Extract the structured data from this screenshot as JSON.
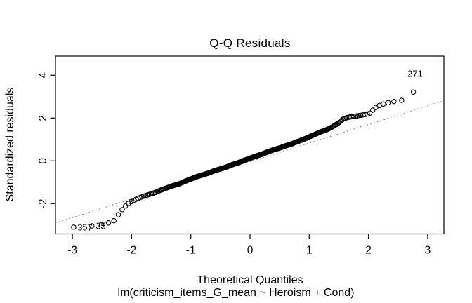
{
  "figure": {
    "background": "#ffffff",
    "foreground": "#000000"
  },
  "chart_data": {
    "type": "scatter",
    "subtype": "qq-normal-residual-plot",
    "title": "Q-Q Residuals",
    "xlabel": "Theoretical Quantiles",
    "ylabel": "Standardized residuals",
    "subtitle": "lm(criticism_items_G_mean ~ Heroism + Cond)",
    "x_ticks": [
      -3,
      -2,
      -1,
      0,
      1,
      2,
      3
    ],
    "y_ticks": [
      -2,
      0,
      2,
      4
    ],
    "xlim": [
      -3.286,
      3.274
    ],
    "ylim": [
      -3.417,
      4.895
    ],
    "grid": false,
    "legend": null,
    "n_points": 430,
    "quantile_offset": 0.375,
    "qq_curve": [
      [
        -2.98,
        -3.1
      ],
      [
        -2.67,
        -3.04
      ],
      [
        -2.51,
        -3.0
      ],
      [
        -2.39,
        -2.9
      ],
      [
        -2.3,
        -2.8
      ],
      [
        -2.22,
        -2.5
      ],
      [
        -2.16,
        -2.28
      ],
      [
        -2.1,
        -2.1
      ],
      [
        -2.05,
        -1.98
      ],
      [
        -2.0,
        -1.9
      ],
      [
        -1.9,
        -1.76
      ],
      [
        -1.8,
        -1.66
      ],
      [
        -1.7,
        -1.57
      ],
      [
        -1.6,
        -1.48
      ],
      [
        -1.5,
        -1.36
      ],
      [
        -1.4,
        -1.26
      ],
      [
        -1.3,
        -1.16
      ],
      [
        -1.2,
        -1.08
      ],
      [
        -1.1,
        -0.96
      ],
      [
        -1.0,
        -0.85
      ],
      [
        -0.9,
        -0.74
      ],
      [
        -0.8,
        -0.66
      ],
      [
        -0.7,
        -0.57
      ],
      [
        -0.6,
        -0.46
      ],
      [
        -0.5,
        -0.38
      ],
      [
        -0.4,
        -0.29
      ],
      [
        -0.3,
        -0.18
      ],
      [
        -0.2,
        -0.09
      ],
      [
        -0.1,
        0.02
      ],
      [
        0.0,
        0.12
      ],
      [
        0.1,
        0.22
      ],
      [
        0.2,
        0.31
      ],
      [
        0.3,
        0.42
      ],
      [
        0.4,
        0.52
      ],
      [
        0.5,
        0.6
      ],
      [
        0.6,
        0.7
      ],
      [
        0.7,
        0.79
      ],
      [
        0.8,
        0.9
      ],
      [
        0.9,
        1.0
      ],
      [
        1.0,
        1.12
      ],
      [
        1.1,
        1.24
      ],
      [
        1.2,
        1.36
      ],
      [
        1.3,
        1.46
      ],
      [
        1.4,
        1.6
      ],
      [
        1.5,
        1.78
      ],
      [
        1.57,
        1.95
      ],
      [
        1.65,
        2.03
      ],
      [
        1.75,
        2.08
      ],
      [
        1.85,
        2.12
      ],
      [
        1.95,
        2.17
      ],
      [
        2.02,
        2.22
      ],
      [
        2.1,
        2.45
      ],
      [
        2.16,
        2.56
      ],
      [
        2.22,
        2.63
      ],
      [
        2.3,
        2.7
      ],
      [
        2.39,
        2.76
      ],
      [
        2.51,
        2.81
      ],
      [
        2.67,
        2.87
      ],
      [
        2.98,
        4.08
      ]
    ],
    "labeled_points": [
      {
        "label": "271",
        "x": 2.98,
        "y": 4.08,
        "side": "left"
      },
      {
        "label": "357",
        "x": -2.98,
        "y": -3.1,
        "side": "right"
      },
      {
        "label": "35",
        "x": -2.67,
        "y": -3.04,
        "side": "right"
      }
    ],
    "reference_line": {
      "slope": 0.871,
      "intercept": -0.04,
      "style": "dotted",
      "color": "#7f7f7f"
    },
    "point_style": {
      "shape": "open-circle",
      "radius": 3.2,
      "stroke": "#000000",
      "stroke_width": 1.05
    }
  }
}
